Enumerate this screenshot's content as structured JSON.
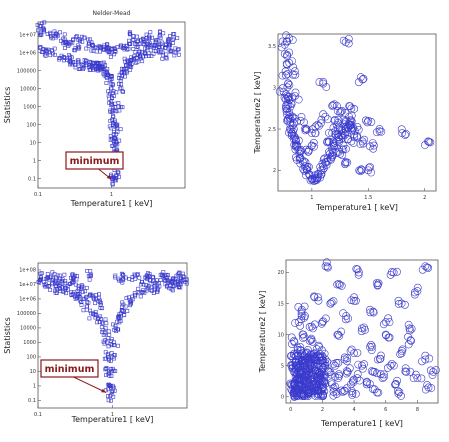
{
  "colors": {
    "marker": "#3a3acc",
    "frame": "#555555",
    "annot_box": "#8b1a1a",
    "annot_text": "#8b1a1a"
  },
  "chart_data": [
    {
      "type": "scatter",
      "title": "Nelder-Mead",
      "xlabel": "Temperature1 [ keV]",
      "ylabel": "Statistics",
      "x_scale": "log",
      "y_scale": "log",
      "xlim": [
        0.1,
        10
      ],
      "ylim": [
        0.03,
        50000000
      ],
      "x_ticks": [
        {
          "v": 0.1,
          "label": "0.1"
        },
        {
          "v": 1,
          "label": "1"
        }
      ],
      "y_ticks": [
        {
          "v": 10000000,
          "label": "1e+07"
        },
        {
          "v": 1000000,
          "label": "1e+06"
        },
        {
          "v": 100000,
          "label": "100000"
        },
        {
          "v": 10000,
          "label": "10000"
        },
        {
          "v": 1000,
          "label": "1000"
        },
        {
          "v": 100,
          "label": "100"
        },
        {
          "v": 10,
          "label": "10"
        },
        {
          "v": 1,
          "label": "1"
        },
        {
          "v": 0.1,
          "label": "0.1"
        }
      ],
      "annotation": {
        "text": "minimum",
        "x": 1.1,
        "y": 0.08
      },
      "points": [
        [
          0.11,
          30000000
        ],
        [
          0.12,
          15000000
        ],
        [
          0.15,
          7000000
        ],
        [
          0.18,
          10000000
        ],
        [
          0.22,
          6000000
        ],
        [
          0.25,
          3000000
        ],
        [
          0.3,
          5000000
        ],
        [
          0.35,
          2500000
        ],
        [
          0.4,
          4000000
        ],
        [
          0.5,
          3000000
        ],
        [
          0.6,
          2000000
        ],
        [
          0.7,
          1800000
        ],
        [
          0.8,
          2500000
        ],
        [
          0.9,
          1500000
        ],
        [
          1.0,
          1000000
        ],
        [
          1.2,
          2000000
        ],
        [
          1.5,
          1500000
        ],
        [
          1.8,
          3000000
        ],
        [
          2.2,
          2000000
        ],
        [
          2.5,
          5000000
        ],
        [
          3,
          3000000
        ],
        [
          3.5,
          2500000
        ],
        [
          4,
          4000000
        ],
        [
          5,
          2000000
        ],
        [
          6,
          3000000
        ],
        [
          7,
          6000000
        ],
        [
          3,
          10000000
        ],
        [
          4.5,
          8000000
        ],
        [
          2,
          8000000
        ],
        [
          0.12,
          1500000
        ],
        [
          0.13,
          1000000
        ],
        [
          0.16,
          900000
        ],
        [
          0.2,
          500000
        ],
        [
          0.25,
          400000
        ],
        [
          0.3,
          300000
        ],
        [
          0.35,
          250000
        ],
        [
          0.4,
          220000
        ],
        [
          0.45,
          200000
        ],
        [
          0.5,
          200000
        ],
        [
          0.55,
          190000
        ],
        [
          0.6,
          180000
        ],
        [
          0.65,
          170000
        ],
        [
          0.7,
          160000
        ],
        [
          0.75,
          150000
        ],
        [
          0.8,
          120000
        ],
        [
          0.85,
          90000
        ],
        [
          0.9,
          60000
        ],
        [
          0.95,
          30000
        ],
        [
          1.0,
          10000
        ],
        [
          1.02,
          3000
        ],
        [
          1.04,
          1000
        ],
        [
          1.05,
          300
        ],
        [
          1.06,
          100
        ],
        [
          1.07,
          30
        ],
        [
          1.08,
          10
        ],
        [
          1.09,
          3
        ],
        [
          1.1,
          1
        ],
        [
          1.1,
          0.3
        ],
        [
          1.1,
          0.1
        ],
        [
          1.12,
          0.08
        ],
        [
          1.14,
          1
        ],
        [
          1.16,
          10
        ],
        [
          1.2,
          100
        ],
        [
          1.25,
          1000
        ],
        [
          1.3,
          10000
        ],
        [
          1.4,
          50000
        ],
        [
          1.5,
          120000
        ],
        [
          1.6,
          200000
        ],
        [
          1.7,
          300000
        ],
        [
          1.8,
          350000
        ],
        [
          2.0,
          500000
        ],
        [
          2.3,
          800000
        ],
        [
          2.7,
          600000
        ],
        [
          3.2,
          900000
        ],
        [
          4,
          1200000
        ],
        [
          5,
          700000
        ],
        [
          6,
          1500000
        ],
        [
          7.5,
          1000000
        ]
      ]
    },
    {
      "type": "scatter",
      "xlabel": "Temperature1 [ keV]",
      "ylabel": "Temperature2 [ keV]",
      "xlim": [
        0.7,
        2.1
      ],
      "ylim": [
        1.75,
        3.65
      ],
      "x_ticks": [
        {
          "v": 1,
          "label": "1"
        },
        {
          "v": 1.5,
          "label": "1.5"
        },
        {
          "v": 2,
          "label": "2"
        }
      ],
      "y_ticks": [
        {
          "v": 2,
          "label": "2"
        },
        {
          "v": 2.5,
          "label": "2.5"
        },
        {
          "v": 3,
          "label": "3"
        },
        {
          "v": 3.5,
          "label": "3.5"
        }
      ],
      "points": [
        [
          0.76,
          3.52
        ],
        [
          0.78,
          3.4
        ],
        [
          0.8,
          3.3
        ],
        [
          0.77,
          3.15
        ],
        [
          0.79,
          3.05
        ],
        [
          0.75,
          2.95
        ],
        [
          0.78,
          2.9
        ],
        [
          0.8,
          2.85
        ],
        [
          0.82,
          2.8
        ],
        [
          0.77,
          2.75
        ],
        [
          0.8,
          2.7
        ],
        [
          0.83,
          2.65
        ],
        [
          0.78,
          2.6
        ],
        [
          0.81,
          2.55
        ],
        [
          0.84,
          2.5
        ],
        [
          0.82,
          2.45
        ],
        [
          0.85,
          2.4
        ],
        [
          0.86,
          2.35
        ],
        [
          0.87,
          2.3
        ],
        [
          0.88,
          2.25
        ],
        [
          0.89,
          2.2
        ],
        [
          0.9,
          2.15
        ],
        [
          0.92,
          2.1
        ],
        [
          0.94,
          2.05
        ],
        [
          0.96,
          2.0
        ],
        [
          0.98,
          1.95
        ],
        [
          1.0,
          1.9
        ],
        [
          1.02,
          1.87
        ],
        [
          1.04,
          1.9
        ],
        [
          1.06,
          1.95
        ],
        [
          1.08,
          2.0
        ],
        [
          1.1,
          2.05
        ],
        [
          1.12,
          2.1
        ],
        [
          1.14,
          2.15
        ],
        [
          1.16,
          2.2
        ],
        [
          1.18,
          2.25
        ],
        [
          1.2,
          2.3
        ],
        [
          1.22,
          2.35
        ],
        [
          1.24,
          2.4
        ],
        [
          1.26,
          2.42
        ],
        [
          1.28,
          2.45
        ],
        [
          1.3,
          2.5
        ],
        [
          1.32,
          2.52
        ],
        [
          1.34,
          2.55
        ],
        [
          1.36,
          2.5
        ],
        [
          1.38,
          2.48
        ],
        [
          1.3,
          2.6
        ],
        [
          1.25,
          2.7
        ],
        [
          1.2,
          2.8
        ],
        [
          1.35,
          2.75
        ],
        [
          1.4,
          2.4
        ],
        [
          1.45,
          2.35
        ],
        [
          1.5,
          2.6
        ],
        [
          1.55,
          2.3
        ],
        [
          1.6,
          2.5
        ],
        [
          1.8,
          2.45
        ],
        [
          2.03,
          2.35
        ],
        [
          1.12,
          2.65
        ],
        [
          1.05,
          2.55
        ],
        [
          1.0,
          2.3
        ],
        [
          0.95,
          2.25
        ],
        [
          1.15,
          2.35
        ],
        [
          1.25,
          2.2
        ],
        [
          1.3,
          2.1
        ],
        [
          1.42,
          2.0
        ],
        [
          1.5,
          2.0
        ],
        [
          1.1,
          3.05
        ],
        [
          1.3,
          3.55
        ],
        [
          1.45,
          3.1
        ],
        [
          0.85,
          3.2
        ],
        [
          0.9,
          2.6
        ],
        [
          0.95,
          2.5
        ],
        [
          1.0,
          2.45
        ],
        [
          1.18,
          2.45
        ],
        [
          1.22,
          2.55
        ],
        [
          1.28,
          2.3
        ],
        [
          1.35,
          2.35
        ],
        [
          1.33,
          2.65
        ],
        [
          1.2,
          2.6
        ],
        [
          0.85,
          2.9
        ],
        [
          0.8,
          3.6
        ]
      ]
    },
    {
      "type": "scatter",
      "xlabel": "Temperature1 [ keV]",
      "ylabel": "Statistics",
      "x_scale": "log",
      "y_scale": "log",
      "xlim": [
        0.1,
        10
      ],
      "ylim": [
        0.03,
        300000000
      ],
      "x_ticks": [
        {
          "v": 0.1,
          "label": "0.1"
        },
        {
          "v": 1,
          "label": "1"
        }
      ],
      "y_ticks": [
        {
          "v": 100000000,
          "label": "1e+08"
        },
        {
          "v": 10000000,
          "label": "1e+07"
        },
        {
          "v": 1000000,
          "label": "1e+06"
        },
        {
          "v": 100000,
          "label": "100000"
        },
        {
          "v": 10000,
          "label": "10000"
        },
        {
          "v": 1000,
          "label": "1000"
        },
        {
          "v": 100,
          "label": "100"
        },
        {
          "v": 10,
          "label": "10"
        },
        {
          "v": 1,
          "label": "1"
        },
        {
          "v": 0.1,
          "label": "0.1"
        }
      ],
      "annotation": {
        "text": "minimum",
        "x": 0.9,
        "y": 0.3
      },
      "points": [
        [
          0.11,
          30000000
        ],
        [
          0.12,
          15000000
        ],
        [
          0.14,
          8000000
        ],
        [
          0.16,
          20000000
        ],
        [
          0.18,
          5000000
        ],
        [
          0.2,
          10000000
        ],
        [
          0.22,
          3000000
        ],
        [
          0.25,
          8000000
        ],
        [
          0.28,
          2000000
        ],
        [
          0.3,
          15000000
        ],
        [
          0.32,
          1000000
        ],
        [
          0.35,
          6000000
        ],
        [
          0.38,
          600000
        ],
        [
          0.4,
          3000000
        ],
        [
          0.45,
          300000
        ],
        [
          0.5,
          2000000
        ],
        [
          0.55,
          100000
        ],
        [
          0.6,
          1000000
        ],
        [
          0.65,
          50000
        ],
        [
          0.7,
          500000
        ],
        [
          0.75,
          20000
        ],
        [
          0.8,
          5000
        ],
        [
          0.85,
          1000
        ],
        [
          0.88,
          100
        ],
        [
          0.9,
          10
        ],
        [
          0.92,
          1
        ],
        [
          0.93,
          0.2
        ],
        [
          0.95,
          1
        ],
        [
          0.97,
          10
        ],
        [
          1.0,
          100
        ],
        [
          1.05,
          1000
        ],
        [
          1.1,
          10000
        ],
        [
          1.2,
          50000
        ],
        [
          1.3,
          100000
        ],
        [
          1.5,
          300000
        ],
        [
          1.7,
          800000
        ],
        [
          2.0,
          1500000
        ],
        [
          2.5,
          3000000
        ],
        [
          3,
          6000000
        ],
        [
          4,
          10000000
        ],
        [
          5,
          20000000
        ],
        [
          6,
          15000000
        ],
        [
          7,
          25000000
        ],
        [
          8,
          30000000
        ],
        [
          9,
          20000000
        ],
        [
          1.5,
          30000000
        ],
        [
          2,
          40000000
        ],
        [
          3,
          30000000
        ],
        [
          0.5,
          40000000
        ],
        [
          0.3,
          30000000
        ],
        [
          4,
          5000000
        ],
        [
          6,
          8000000
        ],
        [
          8,
          12000000
        ],
        [
          0.2,
          25000000
        ],
        [
          0.15,
          35000000
        ],
        [
          1.2,
          25000000
        ],
        [
          2.5,
          15000000
        ],
        [
          3.5,
          18000000
        ],
        [
          5,
          40000000
        ],
        [
          7,
          10000000
        ]
      ]
    },
    {
      "type": "scatter",
      "xlabel": "Temperature1 [ keV]",
      "ylabel": "Temperature2 [ keV]",
      "xlim": [
        -0.3,
        9.3
      ],
      "ylim": [
        -1,
        22
      ],
      "x_ticks": [
        {
          "v": 0,
          "label": "0"
        },
        {
          "v": 2,
          "label": "2"
        },
        {
          "v": 4,
          "label": "4"
        },
        {
          "v": 6,
          "label": "6"
        },
        {
          "v": 8,
          "label": "8"
        }
      ],
      "y_ticks": [
        {
          "v": 0,
          "label": "0"
        },
        {
          "v": 5,
          "label": "5"
        },
        {
          "v": 10,
          "label": "10"
        },
        {
          "v": 15,
          "label": "15"
        },
        {
          "v": 20,
          "label": "20"
        }
      ],
      "points": [
        [
          0.2,
          2
        ],
        [
          0.3,
          1
        ],
        [
          0.4,
          3
        ],
        [
          0.5,
          2
        ],
        [
          0.6,
          4
        ],
        [
          0.7,
          1.5
        ],
        [
          0.8,
          2.5
        ],
        [
          0.9,
          3.5
        ],
        [
          1.0,
          1
        ],
        [
          1.1,
          2
        ],
        [
          1.2,
          5
        ],
        [
          1.3,
          3
        ],
        [
          1.4,
          1.5
        ],
        [
          1.5,
          6
        ],
        [
          1.6,
          2
        ],
        [
          1.7,
          4
        ],
        [
          1.8,
          3
        ],
        [
          1.9,
          1
        ],
        [
          2.0,
          2.5
        ],
        [
          0.3,
          5
        ],
        [
          0.4,
          7
        ],
        [
          0.5,
          6
        ],
        [
          0.6,
          8
        ],
        [
          0.2,
          9
        ],
        [
          0.8,
          10
        ],
        [
          1.0,
          7
        ],
        [
          1.2,
          9
        ],
        [
          0.5,
          12
        ],
        [
          0.9,
          13
        ],
        [
          1.4,
          11
        ],
        [
          1.8,
          8
        ],
        [
          2.2,
          6
        ],
        [
          2.4,
          4
        ],
        [
          2.6,
          2
        ],
        [
          2.8,
          5
        ],
        [
          3.0,
          3
        ],
        [
          3.2,
          1
        ],
        [
          3.4,
          6
        ],
        [
          3.6,
          4
        ],
        [
          3.8,
          2
        ],
        [
          4.0,
          7
        ],
        [
          4.2,
          3
        ],
        [
          4.5,
          5
        ],
        [
          4.8,
          2
        ],
        [
          5.0,
          8
        ],
        [
          5.2,
          4
        ],
        [
          5.5,
          6
        ],
        [
          5.8,
          3
        ],
        [
          6.0,
          10
        ],
        [
          6.3,
          5
        ],
        [
          6.6,
          2
        ],
        [
          7.0,
          7
        ],
        [
          7.3,
          4
        ],
        [
          7.6,
          9
        ],
        [
          8.0,
          3
        ],
        [
          8.5,
          6
        ],
        [
          9.0,
          4
        ],
        [
          2.0,
          12
        ],
        [
          2.5,
          15
        ],
        [
          3.0,
          10
        ],
        [
          3.5,
          13
        ],
        [
          4.0,
          16
        ],
        [
          4.5,
          11
        ],
        [
          5.0,
          14
        ],
        [
          5.5,
          18
        ],
        [
          6.0,
          12
        ],
        [
          6.5,
          20
        ],
        [
          7.0,
          15
        ],
        [
          7.5,
          11
        ],
        [
          8.0,
          17
        ],
        [
          8.5,
          21
        ],
        [
          2.2,
          21
        ],
        [
          3.1,
          18
        ],
        [
          4.3,
          20
        ],
        [
          1.5,
          16
        ],
        [
          0.7,
          14
        ],
        [
          1.1,
          0.5
        ],
        [
          0.4,
          0.2
        ],
        [
          2.7,
          0.8
        ],
        [
          3.9,
          0.6
        ],
        [
          5.3,
          1.2
        ],
        [
          6.8,
          0.5
        ],
        [
          8.7,
          1.5
        ]
      ]
    }
  ]
}
